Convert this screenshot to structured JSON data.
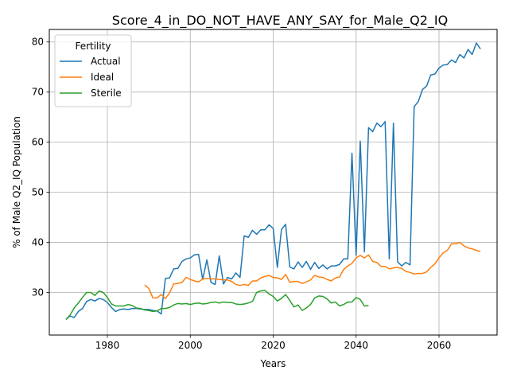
{
  "chart_data": {
    "type": "line",
    "title": "Score_4_in_DO_NOT_HAVE_ANY_SAY_for_Male_Q2_IQ",
    "xlabel": "Years",
    "ylabel": "% of Male Q2_IQ Population",
    "xlim": [
      1966,
      2074
    ],
    "ylim": [
      21.5,
      82.5
    ],
    "xticks": [
      1980,
      2000,
      2020,
      2040,
      2060
    ],
    "yticks": [
      30,
      40,
      50,
      60,
      70,
      80
    ],
    "grid": true,
    "legend": {
      "title": "Fertility",
      "placement": "top-left"
    },
    "series": [
      {
        "name": "Actual",
        "color": "#1f77b4",
        "x": [
          1970,
          1971,
          1972,
          1973,
          1974,
          1975,
          1976,
          1977,
          1978,
          1979,
          1980,
          1981,
          1982,
          1983,
          1984,
          1985,
          1986,
          1987,
          1988,
          1989,
          1990,
          1991,
          1992,
          1993,
          1994,
          1995,
          1996,
          1997,
          1998,
          1999,
          2000,
          2001,
          2002,
          2003,
          2004,
          2005,
          2006,
          2007,
          2008,
          2009,
          2010,
          2011,
          2012,
          2013,
          2014,
          2015,
          2016,
          2017,
          2018,
          2019,
          2020,
          2021,
          2022,
          2023,
          2024,
          2025,
          2026,
          2027,
          2028,
          2029,
          2030,
          2031,
          2032,
          2033,
          2034,
          2035,
          2036,
          2037,
          2038,
          2039,
          2040,
          2041,
          2042,
          2043,
          2044,
          2045,
          2046,
          2047,
          2048,
          2049,
          2050,
          2051,
          2052,
          2053,
          2054,
          2055,
          2056,
          2057,
          2058,
          2059,
          2060,
          2061,
          2062,
          2063,
          2064,
          2065,
          2066,
          2067,
          2068,
          2069,
          2070
        ],
        "values": [
          24.6,
          25.3,
          25.0,
          26.2,
          26.8,
          28.2,
          28.6,
          28.3,
          28.8,
          28.6,
          28.0,
          27.0,
          26.2,
          26.6,
          26.7,
          26.6,
          26.8,
          26.8,
          26.7,
          26.6,
          26.6,
          26.4,
          26.3,
          25.7,
          32.8,
          32.9,
          34.7,
          34.8,
          36.2,
          36.7,
          36.9,
          37.5,
          37.6,
          32.6,
          36.5,
          32.0,
          31.6,
          37.3,
          31.7,
          33.0,
          32.7,
          33.9,
          33.0,
          41.3,
          41.0,
          42.4,
          41.6,
          42.5,
          42.5,
          43.5,
          42.8,
          35.0,
          42.6,
          43.6,
          35.1,
          34.7,
          36.1,
          35.0,
          36.2,
          34.6,
          36.0,
          34.8,
          35.5,
          34.7,
          35.3,
          35.3,
          35.6,
          36.7,
          36.7,
          57.8,
          37.4,
          60.2,
          38.1,
          62.9,
          62.1,
          63.8,
          63.1,
          64.1,
          36.7,
          63.8,
          36.1,
          35.3,
          36.0,
          35.5,
          67.1,
          68.1,
          70.5,
          71.2,
          73.4,
          73.6,
          74.8,
          75.4,
          75.5,
          76.4,
          75.9,
          77.5,
          76.8,
          78.5,
          77.5,
          79.8,
          78.6
        ]
      },
      {
        "name": "Ideal",
        "color": "#ff7f0e",
        "x": [
          1989,
          1990,
          1991,
          1992,
          1993,
          1994,
          1995,
          1996,
          1997,
          1998,
          1999,
          2000,
          2001,
          2002,
          2003,
          2004,
          2005,
          2006,
          2007,
          2008,
          2009,
          2010,
          2011,
          2012,
          2013,
          2014,
          2015,
          2016,
          2017,
          2018,
          2019,
          2020,
          2021,
          2022,
          2023,
          2024,
          2025,
          2026,
          2027,
          2028,
          2029,
          2030,
          2031,
          2032,
          2033,
          2034,
          2035,
          2036,
          2037,
          2038,
          2039,
          2040,
          2041,
          2042,
          2043,
          2044,
          2045,
          2046,
          2047,
          2048,
          2049,
          2050,
          2051,
          2052,
          2053,
          2054,
          2055,
          2056,
          2057,
          2058,
          2059,
          2060,
          2061,
          2062,
          2063,
          2064,
          2065,
          2066,
          2067,
          2068,
          2069,
          2070
        ],
        "values": [
          31.5,
          30.8,
          28.9,
          28.9,
          29.6,
          28.8,
          29.9,
          31.7,
          31.8,
          32.0,
          33.0,
          32.6,
          32.3,
          32.1,
          32.7,
          32.8,
          32.7,
          32.7,
          32.6,
          32.5,
          32.5,
          32.2,
          31.6,
          31.4,
          31.6,
          31.4,
          32.3,
          32.3,
          32.9,
          33.2,
          33.4,
          33.0,
          32.9,
          32.6,
          33.6,
          32.0,
          32.2,
          32.2,
          31.8,
          32.1,
          32.5,
          33.4,
          33.1,
          33.0,
          32.6,
          32.3,
          32.9,
          33.1,
          34.6,
          35.3,
          35.8,
          36.9,
          37.4,
          36.9,
          37.5,
          36.2,
          36.0,
          35.2,
          35.2,
          34.7,
          34.9,
          35.0,
          34.8,
          34.2,
          34.0,
          33.7,
          33.8,
          33.8,
          34.1,
          35.0,
          35.7,
          36.9,
          37.9,
          38.4,
          39.7,
          39.7,
          40.0,
          39.3,
          38.9,
          38.7,
          38.4,
          38.2
        ]
      },
      {
        "name": "Sterile",
        "color": "#2ca02c",
        "x": [
          1970,
          1971,
          1972,
          1973,
          1974,
          1975,
          1976,
          1977,
          1978,
          1979,
          1980,
          1981,
          1982,
          1983,
          1984,
          1985,
          1986,
          1987,
          1988,
          1989,
          1990,
          1991,
          1992,
          1993,
          1994,
          1995,
          1996,
          1997,
          1998,
          1999,
          2000,
          2001,
          2002,
          2003,
          2004,
          2005,
          2006,
          2007,
          2008,
          2009,
          2010,
          2011,
          2012,
          2013,
          2014,
          2015,
          2016,
          2017,
          2018,
          2019,
          2020,
          2021,
          2022,
          2023,
          2024,
          2025,
          2026,
          2027,
          2028,
          2029,
          2030,
          2031,
          2032,
          2033,
          2034,
          2035,
          2036,
          2037,
          2038,
          2039,
          2040,
          2041,
          2042,
          2043
        ],
        "values": [
          24.6,
          25.5,
          26.9,
          27.9,
          29.0,
          30.0,
          30.0,
          29.4,
          30.3,
          30.0,
          29.0,
          27.7,
          27.3,
          27.3,
          27.3,
          27.6,
          27.4,
          26.9,
          26.8,
          26.5,
          26.4,
          26.2,
          26.3,
          26.8,
          26.8,
          27.0,
          27.5,
          27.8,
          27.7,
          27.8,
          27.6,
          27.8,
          27.9,
          27.7,
          27.8,
          28.0,
          28.1,
          27.9,
          28.1,
          28.0,
          28.0,
          27.7,
          27.6,
          27.7,
          27.9,
          28.2,
          30.0,
          30.3,
          30.4,
          29.7,
          29.2,
          28.3,
          28.8,
          29.6,
          28.4,
          27.1,
          27.5,
          26.4,
          26.9,
          27.6,
          28.9,
          29.3,
          29.2,
          28.7,
          27.9,
          28.1,
          27.3,
          27.6,
          28.1,
          28.1,
          29.0,
          28.6,
          27.3,
          27.4
        ]
      }
    ]
  }
}
